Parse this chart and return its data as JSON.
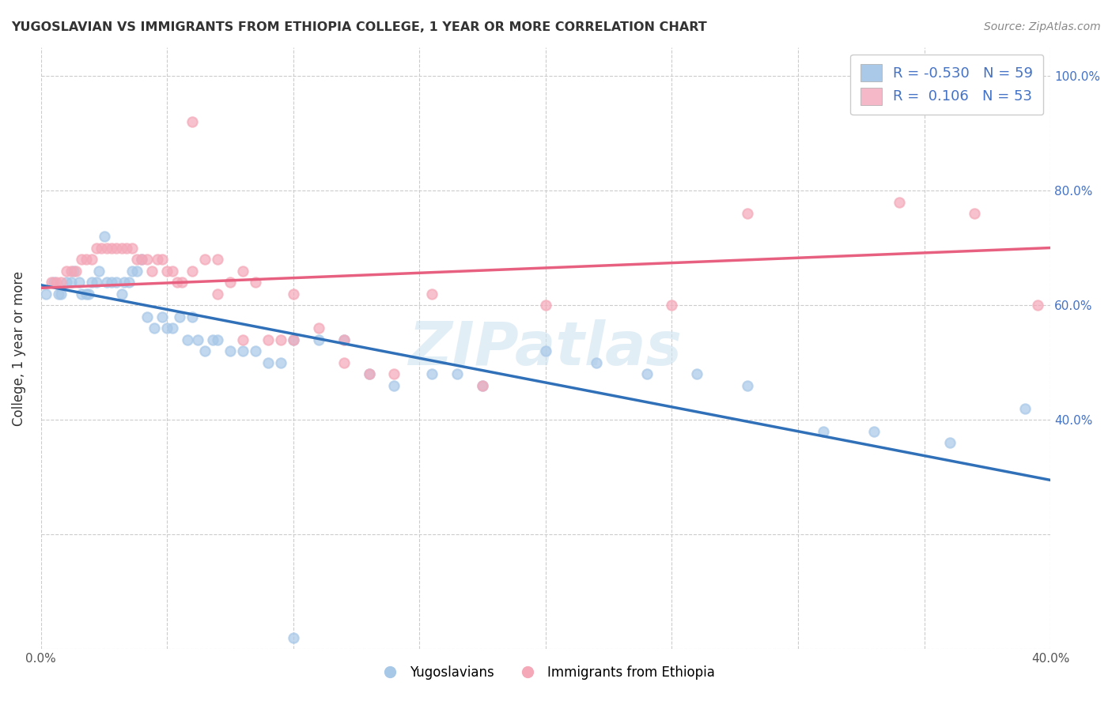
{
  "title": "YUGOSLAVIAN VS IMMIGRANTS FROM ETHIOPIA COLLEGE, 1 YEAR OR MORE CORRELATION CHART",
  "source": "Source: ZipAtlas.com",
  "ylabel": "College, 1 year or more",
  "xlim": [
    0.0,
    0.4
  ],
  "ylim": [
    0.0,
    1.05
  ],
  "ytick_vals": [
    0.0,
    0.2,
    0.4,
    0.6,
    0.8,
    1.0
  ],
  "xtick_vals": [
    0.0,
    0.05,
    0.1,
    0.15,
    0.2,
    0.25,
    0.3,
    0.35,
    0.4
  ],
  "right_ytick_vals": [
    0.4,
    0.6,
    0.8,
    1.0
  ],
  "blue_scatter_color": "#a8c8e8",
  "pink_scatter_color": "#f4a8b8",
  "blue_line_color": "#3070b8",
  "pink_line_color": "#e86080",
  "legend_blue_color": "#aac8e8",
  "legend_pink_color": "#f4b8c8",
  "R_blue": -0.53,
  "N_blue": 59,
  "R_pink": 0.106,
  "N_pink": 53,
  "watermark": "ZIPatlas",
  "blue_scatter_x": [
    0.002,
    0.005,
    0.007,
    0.008,
    0.01,
    0.012,
    0.013,
    0.015,
    0.016,
    0.018,
    0.019,
    0.02,
    0.022,
    0.023,
    0.025,
    0.026,
    0.028,
    0.03,
    0.032,
    0.033,
    0.035,
    0.036,
    0.038,
    0.04,
    0.042,
    0.045,
    0.048,
    0.05,
    0.052,
    0.055,
    0.058,
    0.06,
    0.062,
    0.065,
    0.068,
    0.07,
    0.075,
    0.08,
    0.085,
    0.09,
    0.095,
    0.1,
    0.11,
    0.12,
    0.13,
    0.14,
    0.155,
    0.165,
    0.175,
    0.2,
    0.22,
    0.24,
    0.26,
    0.28,
    0.31,
    0.33,
    0.36,
    0.39,
    0.1
  ],
  "blue_scatter_y": [
    0.62,
    0.64,
    0.62,
    0.62,
    0.64,
    0.64,
    0.66,
    0.64,
    0.62,
    0.62,
    0.62,
    0.64,
    0.64,
    0.66,
    0.72,
    0.64,
    0.64,
    0.64,
    0.62,
    0.64,
    0.64,
    0.66,
    0.66,
    0.68,
    0.58,
    0.56,
    0.58,
    0.56,
    0.56,
    0.58,
    0.54,
    0.58,
    0.54,
    0.52,
    0.54,
    0.54,
    0.52,
    0.52,
    0.52,
    0.5,
    0.5,
    0.54,
    0.54,
    0.54,
    0.48,
    0.46,
    0.48,
    0.48,
    0.46,
    0.52,
    0.5,
    0.48,
    0.48,
    0.46,
    0.38,
    0.38,
    0.36,
    0.42,
    0.02
  ],
  "pink_scatter_x": [
    0.004,
    0.006,
    0.008,
    0.01,
    0.012,
    0.014,
    0.016,
    0.018,
    0.02,
    0.022,
    0.024,
    0.026,
    0.028,
    0.03,
    0.032,
    0.034,
    0.036,
    0.038,
    0.04,
    0.042,
    0.044,
    0.046,
    0.048,
    0.05,
    0.052,
    0.054,
    0.056,
    0.06,
    0.065,
    0.07,
    0.075,
    0.08,
    0.085,
    0.09,
    0.095,
    0.1,
    0.11,
    0.12,
    0.13,
    0.14,
    0.155,
    0.175,
    0.2,
    0.25,
    0.28,
    0.34,
    0.37,
    0.395,
    0.06,
    0.07,
    0.08,
    0.1,
    0.12
  ],
  "pink_scatter_y": [
    0.64,
    0.64,
    0.64,
    0.66,
    0.66,
    0.66,
    0.68,
    0.68,
    0.68,
    0.7,
    0.7,
    0.7,
    0.7,
    0.7,
    0.7,
    0.7,
    0.7,
    0.68,
    0.68,
    0.68,
    0.66,
    0.68,
    0.68,
    0.66,
    0.66,
    0.64,
    0.64,
    0.66,
    0.68,
    0.68,
    0.64,
    0.66,
    0.64,
    0.54,
    0.54,
    0.54,
    0.56,
    0.5,
    0.48,
    0.48,
    0.62,
    0.46,
    0.6,
    0.6,
    0.76,
    0.78,
    0.76,
    0.6,
    0.92,
    0.62,
    0.54,
    0.62,
    0.54
  ],
  "blue_line_x": [
    0.0,
    0.4
  ],
  "blue_line_y": [
    0.635,
    0.295
  ],
  "pink_line_x": [
    0.0,
    0.4
  ],
  "pink_line_y": [
    0.63,
    0.7
  ]
}
